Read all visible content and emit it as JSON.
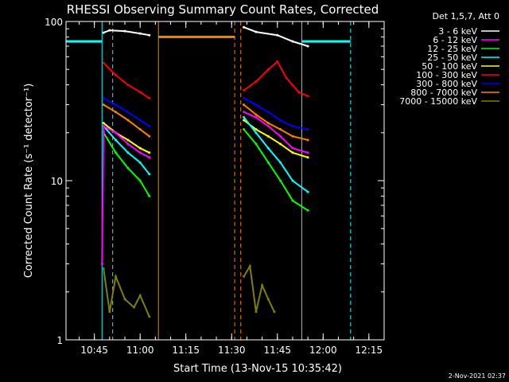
{
  "chart_data": {
    "type": "line",
    "title": "RHESSI Observing Summary Count Rates, Corrected",
    "xlabel": "Start Time (13-Nov-15 10:35:42)",
    "ylabel": "Corrected Count Rate (s⁻¹ detector⁻¹)",
    "yscale": "log",
    "ylim": [
      1,
      100
    ],
    "y_ticks": [
      {
        "value": 1,
        "label": "1"
      },
      {
        "value": 10,
        "label": "10"
      },
      {
        "value": 100,
        "label": "100"
      }
    ],
    "x_ticks": [
      "10:45",
      "11:00",
      "11:15",
      "11:30",
      "11:45",
      "12:00",
      "12:15"
    ],
    "xlim": [
      "10:35:42",
      "12:20"
    ],
    "timestamp": "2-Nov-2021 02:37",
    "legend_title": "Det 1,5,7, Att 0",
    "legend_position": "top-right",
    "series": [
      {
        "name": "3 - 6 keV",
        "color": "#ffffff",
        "segments": [
          {
            "x": [
              "10:48",
              "10:50",
              "10:55",
              "11:00",
              "11:03"
            ],
            "y": [
              85,
              88,
              87,
              84,
              82
            ]
          },
          {
            "x": [
              "11:34",
              "11:38",
              "11:45",
              "11:50",
              "11:55"
            ],
            "y": [
              92,
              86,
              82,
              75,
              70
            ]
          }
        ]
      },
      {
        "name": "6 - 12 keV",
        "color": "#ff00ff",
        "segments": [
          {
            "x": [
              "10:47:30",
              "10:48",
              "10:52",
              "10:56",
              "11:00",
              "11:03"
            ],
            "y": [
              3,
              22,
              20,
              17,
              15,
              14
            ]
          },
          {
            "x": [
              "11:34",
              "11:38",
              "11:42",
              "11:46",
              "11:50",
              "11:55"
            ],
            "y": [
              27,
              25,
              22,
              19,
              16,
              15
            ]
          }
        ]
      },
      {
        "name": "12 - 25 keV",
        "color": "#00ff00",
        "segments": [
          {
            "x": [
              "10:48",
              "10:52",
              "10:56",
              "11:00",
              "11:03"
            ],
            "y": [
              20,
              15,
              12,
              10,
              8
            ]
          },
          {
            "x": [
              "11:34",
              "11:38",
              "11:42",
              "11:46",
              "11:50",
              "11:55"
            ],
            "y": [
              21,
              17,
              13,
              10,
              7.5,
              6.5
            ]
          }
        ]
      },
      {
        "name": "25 - 50 keV",
        "color": "#00ffff",
        "segments": [
          {
            "x": [
              "10:48",
              "10:52",
              "10:56",
              "11:00",
              "11:03"
            ],
            "y": [
              22,
              18,
              15,
              13,
              11
            ]
          },
          {
            "x": [
              "11:34",
              "11:38",
              "11:42",
              "11:46",
              "11:50",
              "11:55"
            ],
            "y": [
              25,
              20,
              16,
              13,
              10,
              8.5
            ]
          }
        ]
      },
      {
        "name": "50 - 100 keV",
        "color": "#ffff00",
        "segments": [
          {
            "x": [
              "10:48",
              "10:52",
              "10:56",
              "11:00",
              "11:03"
            ],
            "y": [
              23,
              20,
              18,
              16,
              15
            ]
          },
          {
            "x": [
              "11:34",
              "11:38",
              "11:42",
              "11:46",
              "11:50",
              "11:55"
            ],
            "y": [
              24,
              21,
              19,
              17,
              15,
              14
            ]
          }
        ]
      },
      {
        "name": "100 - 300 keV",
        "color": "#ff0000",
        "segments": [
          {
            "x": [
              "10:48",
              "10:52",
              "10:56",
              "11:00",
              "11:03"
            ],
            "y": [
              55,
              46,
              40,
              36,
              33
            ]
          },
          {
            "x": [
              "11:34",
              "11:38",
              "11:42",
              "11:45",
              "11:48",
              "11:52",
              "11:55"
            ],
            "y": [
              37,
              42,
              50,
              56,
              44,
              36,
              34
            ]
          }
        ]
      },
      {
        "name": "300 - 800 keV",
        "color": "#0000ff",
        "segments": [
          {
            "x": [
              "10:48",
              "10:52",
              "10:56",
              "11:00",
              "11:03"
            ],
            "y": [
              33,
              30,
              27,
              24,
              22
            ]
          },
          {
            "x": [
              "11:34",
              "11:38",
              "11:42",
              "11:46",
              "11:50",
              "11:55"
            ],
            "y": [
              33,
              30,
              27,
              24,
              22,
              21
            ]
          }
        ]
      },
      {
        "name": "800 - 7000 keV",
        "color": "#ff8000",
        "segments": [
          {
            "x": [
              "10:48",
              "10:52",
              "10:56",
              "11:00",
              "11:03"
            ],
            "y": [
              30,
              27,
              24,
              21,
              19
            ]
          },
          {
            "x": [
              "11:34",
              "11:38",
              "11:42",
              "11:46",
              "11:50",
              "11:55"
            ],
            "y": [
              30,
              26,
              23,
              21,
              19,
              18
            ]
          }
        ]
      },
      {
        "name": "7000 - 15000 keV",
        "color": "#808000",
        "segments": [
          {
            "x": [
              "10:48",
              "10:50",
              "10:52",
              "10:55",
              "10:58",
              "11:00",
              "11:03"
            ],
            "y": [
              2.8,
              1.5,
              2.5,
              1.8,
              1.6,
              1.9,
              1.4
            ]
          },
          {
            "x": [
              "11:34",
              "11:36",
              "11:38",
              "11:40",
              "11:42",
              "11:44"
            ],
            "y": [
              2.5,
              2.9,
              1.5,
              2.2,
              1.8,
              1.5
            ]
          }
        ]
      }
    ],
    "flags": [
      {
        "name": "attenuator/aperture",
        "color": "#00ffff",
        "segments": [
          {
            "x": [
              "10:35:42",
              "10:47:30"
            ],
            "y": [
              75,
              75
            ]
          },
          {
            "x": [
              "11:53",
              "12:09"
            ],
            "y": [
              75,
              75
            ]
          }
        ]
      },
      {
        "name": "orbit state",
        "color": "#ff8000",
        "segments": [
          {
            "x": [
              "11:06",
              "11:31"
            ],
            "y": [
              80,
              80
            ]
          }
        ]
      }
    ],
    "vlines": [
      {
        "time": "10:35:42",
        "color": "#00ffff",
        "style": "solid"
      },
      {
        "time": "10:47:30",
        "color": "#00ffff",
        "style": "solid"
      },
      {
        "time": "10:51",
        "color": "#00ffff",
        "style": "dashed"
      },
      {
        "time": "11:06",
        "color": "#ff8000",
        "style": "solid"
      },
      {
        "time": "11:31",
        "color": "#ff8000",
        "style": "dashed"
      },
      {
        "time": "11:33",
        "color": "#ff8000",
        "style": "dashed"
      },
      {
        "time": "11:53",
        "color": "#00ffff",
        "style": "solid"
      },
      {
        "time": "12:09",
        "color": "#00ffff",
        "style": "dashed"
      }
    ]
  }
}
